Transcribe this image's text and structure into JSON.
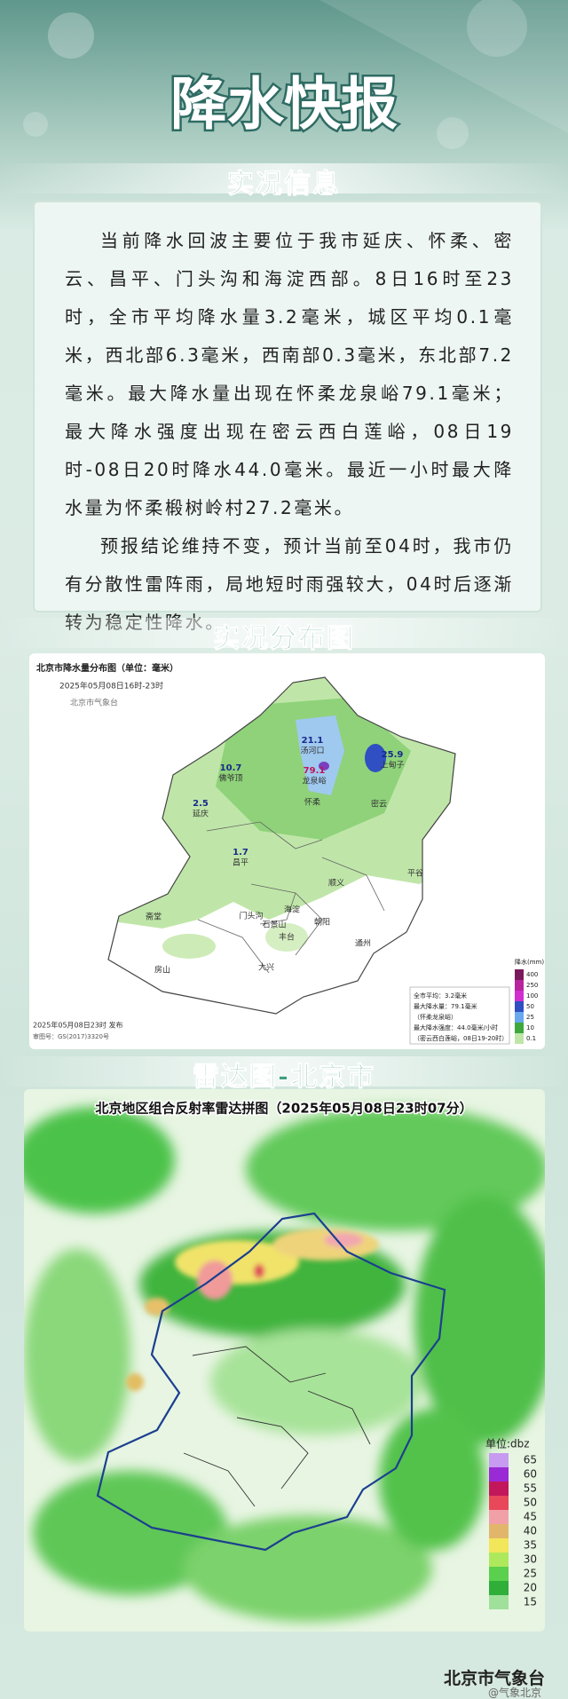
{
  "header": {
    "title": "降水快报"
  },
  "observation": {
    "title": "实况信息",
    "paragraphs": [
      "当前降水回波主要位于我市延庆、怀柔、密云、昌平、门头沟和海淀西部。8日16时至23时，全市平均降水量3.2毫米，城区平均0.1毫米，西北部6.3毫米，西南部0.3毫米，东北部7.2毫米。最大降水量出现在怀柔龙泉峪79.1毫米；最大降水强度出现在密云西白莲峪，08日19时-08日20时降水44.0毫米。最近一小时最大降水量为怀柔椴树岭村27.2毫米。",
      "预报结论维持不变，预计当前至04时，我市仍有分散性雷阵雨，局地短时雨强较大，04时后逐渐转为稳定性降水。"
    ]
  },
  "distribution": {
    "title": "实况分布图",
    "map_title": "北京市降水量分布图（单位：毫米）",
    "period": "2025年05月08日16时-23时",
    "agency": "北京市气象台",
    "stations": [
      {
        "value": 21.1,
        "name": "汤河口"
      },
      {
        "value": 79.1,
        "name": "龙泉峪"
      },
      {
        "value": 25.9,
        "name": "上甸子"
      },
      {
        "value": 10.7,
        "name": "佛爷顶"
      },
      {
        "value": 2.5,
        "name": "延庆"
      },
      {
        "value": 1.7,
        "name": "昌平"
      }
    ],
    "districts": [
      "怀柔",
      "密云",
      "平谷",
      "顺义",
      "门头沟",
      "海淀",
      "石景山",
      "朝阳",
      "丰台",
      "通州",
      "斋堂",
      "房山",
      "大兴"
    ],
    "summary": [
      "全市平均：3.2毫米",
      "最大降水量：79.1毫米",
      "（怀柔龙泉峪）",
      "最大降水强度：44.0毫米/小时",
      "（密云西白莲峪，08日19-20时）"
    ],
    "scale_title": "降水(mm)",
    "scale": [
      400,
      250,
      100,
      50,
      25,
      10,
      0.1
    ],
    "issued": "2025年05月08日23时 发布",
    "approval": "审图号：GS(2017)3320号"
  },
  "radar": {
    "title": "雷达图-北京市",
    "image_title": "北京地区组合反射率雷达拼图（2025年05月08日23时07分）",
    "unit": "单位:dbz",
    "scale": [
      65,
      60,
      55,
      50,
      45,
      40,
      35,
      30,
      25,
      20,
      15
    ]
  },
  "footer": {
    "source": "北京市气象台",
    "watermark": "@气象北京"
  }
}
